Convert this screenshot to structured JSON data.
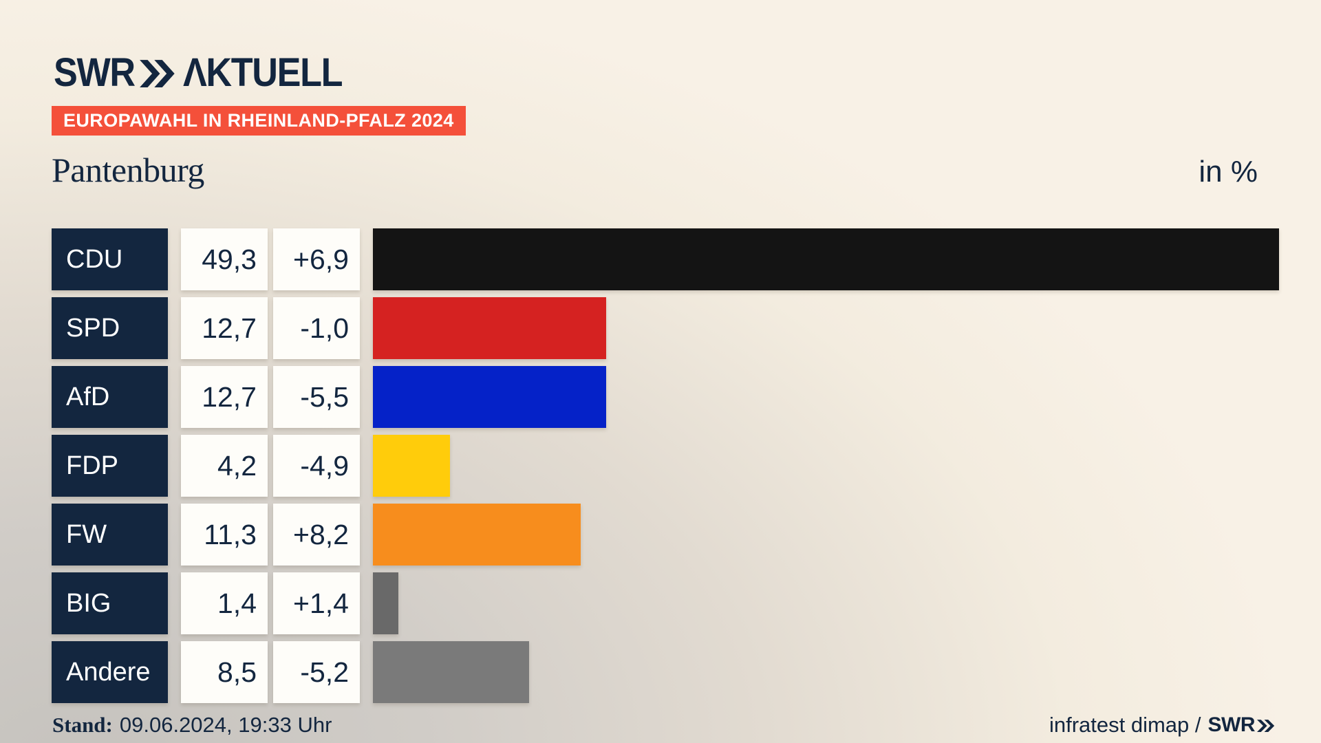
{
  "header": {
    "logo_swr": "SWR",
    "logo_aktuell": "ΛKTUELL",
    "badge": "EUROPAWAHL IN RHEINLAND-PFALZ 2024",
    "title": "Pantenburg",
    "unit_label": "in %"
  },
  "chart_data": {
    "type": "bar",
    "orientation": "horizontal",
    "title": "Pantenburg",
    "subtitle": "Europawahl in Rheinland-Pfalz 2024",
    "unit": "%",
    "max_value": 49.3,
    "legend": "none",
    "grid": false,
    "categories": [
      "CDU",
      "SPD",
      "AfD",
      "FDP",
      "FW",
      "BIG",
      "Andere"
    ],
    "values": [
      49.3,
      12.7,
      12.7,
      4.2,
      11.3,
      1.4,
      8.5
    ],
    "changes": [
      6.9,
      -1.0,
      -5.5,
      -4.9,
      8.2,
      1.4,
      -5.2
    ],
    "rows": [
      {
        "party": "CDU",
        "value": 49.3,
        "value_label": "49,3",
        "change_label": "+6,9",
        "color": "#141414"
      },
      {
        "party": "SPD",
        "value": 12.7,
        "value_label": "12,7",
        "change_label": "-1,0",
        "color": "#d52221"
      },
      {
        "party": "AfD",
        "value": 12.7,
        "value_label": "12,7",
        "change_label": "-5,5",
        "color": "#0522c8"
      },
      {
        "party": "FDP",
        "value": 4.2,
        "value_label": "4,2",
        "change_label": "-4,9",
        "color": "#ffcc0b"
      },
      {
        "party": "FW",
        "value": 11.3,
        "value_label": "11,3",
        "change_label": "+8,2",
        "color": "#f78d1d"
      },
      {
        "party": "BIG",
        "value": 1.4,
        "value_label": "1,4",
        "change_label": "+1,4",
        "color": "#696969"
      },
      {
        "party": "Andere",
        "value": 8.5,
        "value_label": "8,5",
        "change_label": "-5,2",
        "color": "#7a7a7a"
      }
    ]
  },
  "footer": {
    "stand_label": "Stand:",
    "stand_value": "09.06.2024, 19:33 Uhr",
    "source_text": "infratest dimap /",
    "source_logo": "SWR"
  },
  "colors": {
    "navy": "#13263f",
    "badge_red": "#f4503a",
    "background_cream": "#f8f1e6",
    "background_gray": "#c6c3be",
    "cell_white": "#fefdf9"
  }
}
